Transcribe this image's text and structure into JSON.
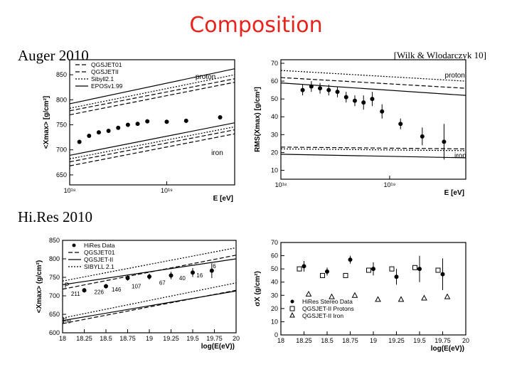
{
  "slide": {
    "title": "Composition",
    "auger_label": "Auger 2010",
    "hires_label": "Hi.Res 2010",
    "citation": "[Wilk & Wlodarczyk 10]",
    "colors": {
      "title": "#e8231b",
      "ink": "#000000"
    }
  },
  "chart_data": [
    {
      "id": "auger-xmax",
      "type": "line",
      "xscale": "log",
      "xlim": [
        18,
        19.7
      ],
      "ylim": [
        630,
        880
      ],
      "xlabel": "E [eV]",
      "ylabel": "<Xmax> [g/cm²]",
      "x_ticks": [
        {
          "v": 18,
          "label": "10¹⁸"
        },
        {
          "v": 19,
          "label": "10¹⁹"
        }
      ],
      "y_ticks": [
        650,
        700,
        750,
        800,
        850
      ],
      "legend": [
        "QGSJET01",
        "QGSJETII",
        "Sibyll2.1",
        "EPOSv1.99"
      ],
      "annotations": [
        {
          "text": "proton",
          "x": 19.4,
          "y": 842
        },
        {
          "text": "iron",
          "x": 19.52,
          "y": 690
        }
      ],
      "series": [
        {
          "name": "QGSJET01 p",
          "style": "dash",
          "x": [
            18,
            19.7
          ],
          "y": [
            770,
            835
          ]
        },
        {
          "name": "QGSJETII p",
          "style": "dash",
          "x": [
            18,
            19.7
          ],
          "y": [
            778,
            842
          ]
        },
        {
          "name": "Sibyll2.1 p",
          "style": "dot",
          "x": [
            18,
            19.7
          ],
          "y": [
            783,
            850
          ]
        },
        {
          "name": "EPOSv1.99 p",
          "style": "solid",
          "x": [
            18,
            19.7
          ],
          "y": [
            792,
            862
          ]
        },
        {
          "name": "QGSJET01 Fe",
          "style": "dash",
          "x": [
            18,
            19.7
          ],
          "y": [
            668,
            732
          ]
        },
        {
          "name": "QGSJETII Fe",
          "style": "dash",
          "x": [
            18,
            19.7
          ],
          "y": [
            676,
            740
          ]
        },
        {
          "name": "Sibyll2.1 Fe",
          "style": "dot",
          "x": [
            18,
            19.7
          ],
          "y": [
            682,
            746
          ]
        },
        {
          "name": "EPOSv1.99 Fe",
          "style": "solid",
          "x": [
            18,
            19.7
          ],
          "y": [
            689,
            754
          ]
        },
        {
          "name": "Auger data",
          "style": "points",
          "x": [
            18.1,
            18.2,
            18.3,
            18.4,
            18.5,
            18.6,
            18.7,
            18.8,
            19.0,
            19.2,
            19.55
          ],
          "y": [
            716,
            728,
            735,
            738,
            744,
            750,
            752,
            757,
            756,
            758,
            765
          ]
        }
      ]
    },
    {
      "id": "auger-rms",
      "type": "scatter",
      "xscale": "log",
      "xlim": [
        18,
        19.7
      ],
      "ylim": [
        5,
        72
      ],
      "xlabel": "E [eV]",
      "ylabel": "RMS(Xmax) [g/cm²]",
      "x_ticks": [
        {
          "v": 18,
          "label": "10¹⁸"
        },
        {
          "v": 19,
          "label": "10¹⁹"
        }
      ],
      "y_ticks": [
        10,
        20,
        30,
        40,
        50,
        60,
        70
      ],
      "annotations": [
        {
          "text": "proton",
          "x": 19.6,
          "y": 62
        },
        {
          "text": "iron",
          "x": 19.65,
          "y": 17
        }
      ],
      "series": [
        {
          "name": "p band 1",
          "style": "dash",
          "x": [
            18,
            19.7
          ],
          "y": [
            62,
            56
          ]
        },
        {
          "name": "p band 2",
          "style": "solid",
          "x": [
            18,
            19.7
          ],
          "y": [
            59,
            52
          ]
        },
        {
          "name": "p band 3",
          "style": "dot",
          "x": [
            18,
            19.7
          ],
          "y": [
            66,
            60
          ]
        },
        {
          "name": "Fe band 1",
          "style": "dash",
          "x": [
            18,
            19.7
          ],
          "y": [
            23,
            22
          ]
        },
        {
          "name": "Fe band 2",
          "style": "dot",
          "x": [
            18,
            19.7
          ],
          "y": [
            22,
            21
          ]
        },
        {
          "name": "Fe band 3",
          "style": "solid",
          "x": [
            18,
            19.7
          ],
          "y": [
            19,
            17
          ]
        },
        {
          "name": "Auger data",
          "style": "points-err",
          "x": [
            18.2,
            18.28,
            18.36,
            18.44,
            18.52,
            18.6,
            18.68,
            18.76,
            18.84,
            18.93,
            19.1,
            19.3,
            19.5
          ],
          "y": [
            55,
            57,
            56,
            55,
            54,
            51,
            49,
            48,
            50,
            43,
            36,
            29,
            26
          ],
          "err": [
            3,
            3,
            3,
            3,
            3,
            3,
            3,
            4,
            4,
            4,
            3,
            5,
            10
          ]
        }
      ]
    },
    {
      "id": "hires-xmax",
      "type": "line",
      "xlim": [
        18,
        20
      ],
      "ylim": [
        600,
        850
      ],
      "xlabel": "log(E(eV))",
      "ylabel": "<Xmax> (g/cm²)",
      "x_ticks": [
        18,
        18.25,
        18.5,
        18.75,
        19,
        19.25,
        19.5,
        19.75,
        20
      ],
      "y_ticks": [
        600,
        650,
        700,
        750,
        800,
        850
      ],
      "legend": [
        "HiRes Data",
        "QGSJET01",
        "QGSJET-II",
        "SIBYLL 2.1"
      ],
      "annotations": [
        {
          "text": "P",
          "x": 18.05,
          "y": 722
        },
        {
          "text": "Fe",
          "x": 18.05,
          "y": 626
        }
      ],
      "series": [
        {
          "name": "QGSJET01 P",
          "style": "dash",
          "x": [
            18,
            20
          ],
          "y": [
            718,
            810
          ]
        },
        {
          "name": "QGSJET-II P",
          "style": "solid",
          "x": [
            18,
            20
          ],
          "y": [
            730,
            800
          ]
        },
        {
          "name": "SIBYLL 2.1 P",
          "style": "dot",
          "x": [
            18,
            20
          ],
          "y": [
            740,
            830
          ]
        },
        {
          "name": "QGSJET01 Fe",
          "style": "dash",
          "x": [
            18,
            20
          ],
          "y": [
            625,
            715
          ]
        },
        {
          "name": "QGSJET-II Fe",
          "style": "solid",
          "x": [
            18,
            20
          ],
          "y": [
            633,
            713
          ]
        },
        {
          "name": "SIBYLL 2.1 Fe",
          "style": "dot",
          "x": [
            18,
            20
          ],
          "y": [
            640,
            735
          ]
        },
        {
          "name": "HiRes Data",
          "style": "points-err",
          "x": [
            18.25,
            18.5,
            18.75,
            19,
            19.25,
            19.5,
            19.72
          ],
          "y": [
            715,
            726,
            748,
            752,
            755,
            763,
            768
          ],
          "err": [
            6,
            6,
            7,
            8,
            10,
            12,
            20
          ]
        }
      ],
      "event_counts": [
        {
          "text": "211",
          "x": 18.15,
          "y": 700
        },
        {
          "text": "226",
          "x": 18.42,
          "y": 705
        },
        {
          "text": "146",
          "x": 18.62,
          "y": 712
        },
        {
          "text": "107",
          "x": 18.85,
          "y": 720
        },
        {
          "text": "67",
          "x": 19.15,
          "y": 730
        },
        {
          "text": "40",
          "x": 19.38,
          "y": 742
        },
        {
          "text": "16",
          "x": 19.58,
          "y": 750
        },
        {
          "text": "6",
          "x": 19.75,
          "y": 775
        }
      ]
    },
    {
      "id": "hires-width",
      "type": "scatter",
      "xlim": [
        18,
        20
      ],
      "ylim": [
        0,
        70
      ],
      "xlabel": "log(E(eV))",
      "ylabel": "σX (g/cm²)",
      "x_ticks": [
        18,
        18.25,
        18.5,
        18.75,
        19,
        19.25,
        19.5,
        19.75,
        20
      ],
      "y_ticks": [
        0,
        10,
        20,
        30,
        40,
        50,
        60,
        70
      ],
      "legend": [
        "HiRes Stereo Data",
        "QGSJET-II Protons",
        "QGSJET-II Iron"
      ],
      "series": [
        {
          "name": "HiRes Stereo Data",
          "style": "points-err",
          "x": [
            18.25,
            18.5,
            18.75,
            19,
            19.25,
            19.5,
            19.75
          ],
          "y": [
            52,
            48,
            57,
            50,
            44,
            50,
            46
          ],
          "err": [
            4,
            3,
            3,
            5,
            6,
            10,
            12
          ]
        },
        {
          "name": "QGSJET-II Protons",
          "style": "open-square",
          "x": [
            18.2,
            18.45,
            18.7,
            18.95,
            19.2,
            19.45,
            19.7
          ],
          "y": [
            50,
            45,
            45,
            49,
            50,
            51,
            49
          ]
        },
        {
          "name": "QGSJET-II Iron",
          "style": "triangle",
          "x": [
            18.3,
            18.55,
            18.8,
            19.05,
            19.3,
            19.55,
            19.8
          ],
          "y": [
            31,
            29,
            30,
            27,
            27,
            28,
            29
          ]
        }
      ]
    }
  ]
}
